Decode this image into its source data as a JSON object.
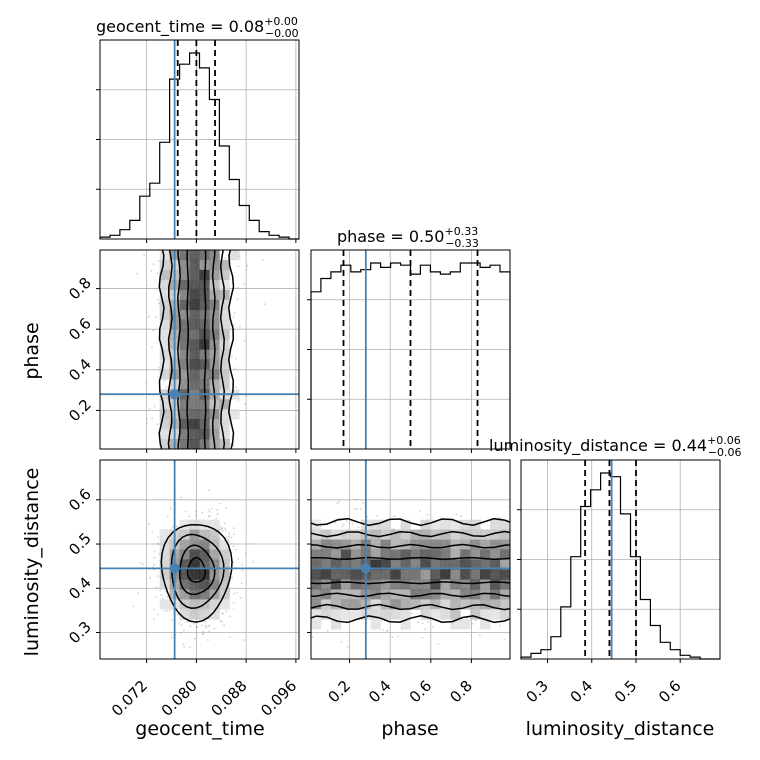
{
  "chart_data": {
    "type": "corner",
    "parameters": [
      "geocent_time",
      "phase",
      "luminosity_distance"
    ],
    "titles": {
      "geocent_time": {
        "label": "geocent_time",
        "median": "0.08",
        "plus": "+0.00",
        "minus": "−0.00"
      },
      "phase": {
        "label": "phase",
        "median": "0.50",
        "plus": "+0.33",
        "minus": "−0.33"
      },
      "luminosity_distance": {
        "label": "luminosity_distance",
        "median": "0.44",
        "plus": "+0.06",
        "minus": "−0.06"
      }
    },
    "ranges": {
      "geocent_time": [
        0.0645,
        0.0965
      ],
      "phase": [
        0.01,
        0.99
      ],
      "luminosity_distance": [
        0.24,
        0.69
      ]
    },
    "ticks": {
      "geocent_time": {
        "values": [
          0.072,
          0.08,
          0.088,
          0.096
        ],
        "labels": [
          "0.072",
          "0.080",
          "0.088",
          "0.096"
        ]
      },
      "phase": {
        "values": [
          0.2,
          0.4,
          0.6,
          0.8
        ],
        "labels": [
          "0.2",
          "0.4",
          "0.6",
          "0.8"
        ]
      },
      "luminosity_distance": {
        "values": [
          0.3,
          0.4,
          0.5,
          0.6
        ],
        "labels": [
          "0.3",
          "0.4",
          "0.5",
          "0.6"
        ]
      }
    },
    "truths": {
      "geocent_time": 0.0765,
      "phase": 0.28,
      "luminosity_distance": 0.445
    },
    "quantiles": {
      "geocent_time": [
        0.077,
        0.08,
        0.083
      ],
      "phase": [
        0.17,
        0.5,
        0.83
      ],
      "luminosity_distance": [
        0.385,
        0.44,
        0.5
      ]
    },
    "posterior": {
      "geocent_time": {
        "mean": 0.08,
        "sd": 0.0028
      },
      "phase": {
        "min": 0.0,
        "max": 1.0
      },
      "luminosity_distance": {
        "mean": 0.44,
        "sd": 0.055
      }
    },
    "histograms": {
      "geocent_time": [
        0.01,
        0.02,
        0.05,
        0.1,
        0.23,
        0.3,
        0.52,
        0.86,
        0.94,
        1.0,
        0.92,
        0.75,
        0.5,
        0.32,
        0.18,
        0.1,
        0.04,
        0.02,
        0.01,
        0.0
      ],
      "phase": [
        0.71,
        0.77,
        0.8,
        0.83,
        0.8,
        0.81,
        0.84,
        0.82,
        0.84,
        0.83,
        0.79,
        0.83,
        0.8,
        0.79,
        0.8,
        0.84,
        0.84,
        0.82,
        0.83,
        0.8
      ],
      "luminosity_distance": [
        0.01,
        0.03,
        0.05,
        0.12,
        0.28,
        0.55,
        0.82,
        0.91,
        1.0,
        0.98,
        0.78,
        0.55,
        0.32,
        0.18,
        0.09,
        0.05,
        0.02,
        0.01,
        0.0,
        0.0
      ]
    },
    "grid": true,
    "colors": {
      "truth": "#4682b4",
      "line": "#000000",
      "grid": "#b0b0b0",
      "samples": "#9a9a9a"
    }
  }
}
